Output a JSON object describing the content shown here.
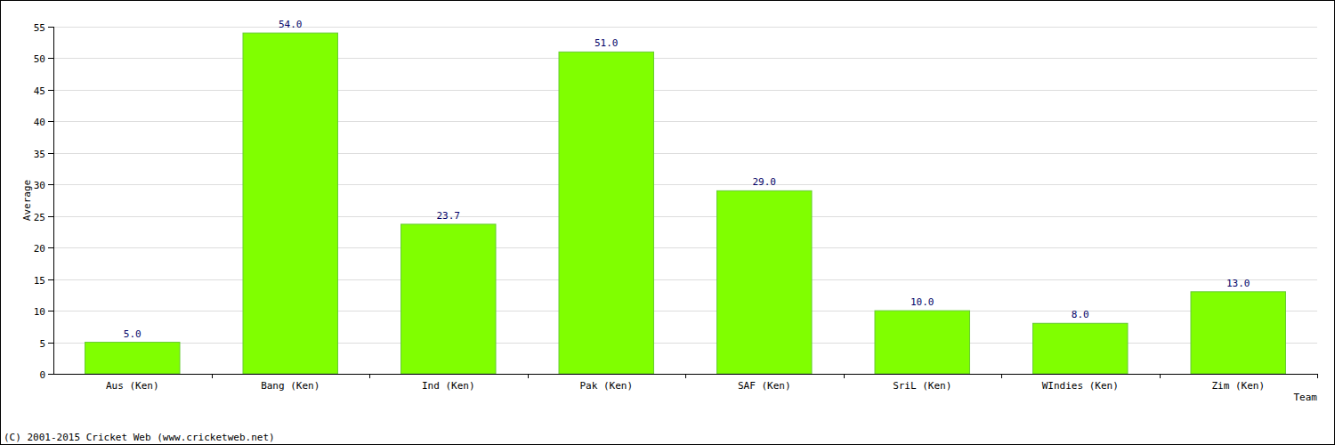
{
  "chart_data": {
    "type": "bar",
    "x_label": "Team",
    "y_label": "Average",
    "annotations": [
      "(C) 2001-2015 Cricket Web (www.cricketweb.net)"
    ],
    "categories": [
      "Aus (Ken)",
      "Bang (Ken)",
      "Ind (Ken)",
      "Pak (Ken)",
      "SAF (Ken)",
      "SriL (Ken)",
      "WIndies (Ken)",
      "Zim (Ken)"
    ],
    "values": [
      5,
      54,
      23.7,
      51,
      29,
      10,
      8,
      13
    ],
    "value_labels": [
      "5.0",
      "54.0",
      "23.7",
      "51.0",
      "29.0",
      "10.0",
      "8.0",
      "13.0"
    ],
    "color": "#80ff00",
    "ylim": [
      0,
      55
    ],
    "yticks": [
      0,
      5,
      10,
      15,
      20,
      25,
      30,
      35,
      40,
      45,
      50,
      55
    ],
    "grid": true,
    "data_labels": true
  }
}
